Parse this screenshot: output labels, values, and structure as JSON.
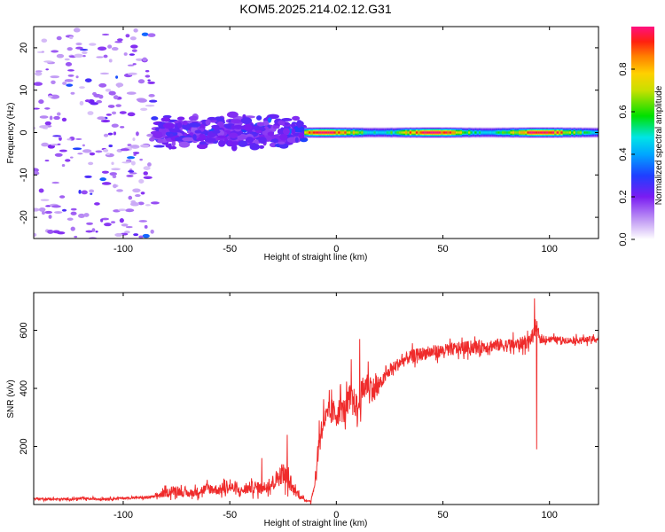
{
  "figure_title": "KOM5.2025.214.02.12.G31",
  "colors": {
    "snr_line": "#ef2b2b",
    "colormap": [
      "#ffffff",
      "#c8a6f5",
      "#9b5cf0",
      "#7a1cf2",
      "#3a10ff",
      "#1f3fff",
      "#00a6ff",
      "#00e5e5",
      "#00e000",
      "#c8e000",
      "#ffd000",
      "#ff8000",
      "#ff2010",
      "#ff1080"
    ]
  },
  "chart_data": [
    {
      "type": "heatmap",
      "title": "",
      "xlabel": "Height of straight line (km)",
      "ylabel": "Frequency (Hz)",
      "xlim": [
        -142,
        123
      ],
      "ylim": [
        -25,
        25
      ],
      "x_ticks": [
        -100,
        -50,
        0,
        50,
        100
      ],
      "x_tick_labels": [
        "-100",
        "-50",
        "0",
        "50",
        "100"
      ],
      "y_ticks": [
        -20,
        -10,
        0,
        10,
        20
      ],
      "y_tick_labels": [
        "-20",
        "-10",
        "0",
        "10",
        "20"
      ],
      "grid": false,
      "colorbar": {
        "label": "Normalized spectral amplitude",
        "range": [
          0,
          1
        ],
        "ticks": [
          0,
          0.2,
          0.4,
          0.6,
          0.8
        ],
        "tick_labels": [
          "0.0",
          "0.2",
          "0.4",
          "0.6",
          "0.8"
        ]
      },
      "regions": [
        {
          "x_range": [
            -142,
            -85
          ],
          "freq_range": [
            -25,
            25
          ],
          "amplitude_range": [
            0.05,
            0.35
          ],
          "pattern": "scattered noise"
        },
        {
          "x_range": [
            -85,
            -15
          ],
          "freq_range": [
            -5,
            5
          ],
          "amplitude_range": [
            0.15,
            0.25
          ],
          "pattern": "broadened scintillation"
        },
        {
          "x_range": [
            -15,
            123
          ],
          "freq_range": [
            -1,
            1
          ],
          "amplitude_range": [
            0.4,
            1.0
          ],
          "pattern": "narrow carrier line"
        }
      ]
    },
    {
      "type": "line",
      "title": "",
      "xlabel": "Height of straight line (km)",
      "ylabel": "SNR (v/v)",
      "xlim": [
        -142,
        123
      ],
      "ylim": [
        0,
        730
      ],
      "x_ticks": [
        -100,
        -50,
        0,
        50,
        100
      ],
      "x_tick_labels": [
        "-100",
        "-50",
        "0",
        "50",
        "100"
      ],
      "y_ticks": [
        200,
        400,
        600
      ],
      "y_tick_labels": [
        "200",
        "400",
        "600"
      ],
      "grid": false,
      "series": [
        {
          "x": [
            -142,
            -130,
            -120,
            -110,
            -100,
            -90,
            -85,
            -80,
            -75,
            -70,
            -65,
            -60,
            -55,
            -50,
            -45,
            -40,
            -35,
            -30,
            -25,
            -20,
            -15,
            -12,
            -10,
            -8,
            -6,
            -4,
            -2,
            0,
            2,
            4,
            6,
            8,
            10,
            12,
            15,
            18,
            20,
            25,
            30,
            35,
            40,
            50,
            60,
            70,
            75,
            80,
            85,
            90,
            94,
            96,
            100,
            110,
            123
          ],
          "y": [
            20,
            18,
            20,
            19,
            22,
            24,
            28,
            40,
            50,
            35,
            45,
            55,
            50,
            60,
            45,
            60,
            55,
            75,
            110,
            50,
            15,
            12,
            70,
            230,
            290,
            300,
            320,
            310,
            330,
            320,
            370,
            360,
            330,
            390,
            420,
            390,
            410,
            460,
            490,
            510,
            520,
            530,
            540,
            545,
            550,
            548,
            552,
            560,
            600,
            565,
            570,
            565,
            570
          ]
        }
      ],
      "spikes": [
        {
          "x": -35,
          "y": 160
        },
        {
          "x": -23,
          "y": 240
        },
        {
          "x": -12,
          "y": 0
        },
        {
          "x": 2,
          "y": 415
        },
        {
          "x": 7,
          "y": 500
        },
        {
          "x": 10,
          "y": 280
        },
        {
          "x": 11,
          "y": 570
        },
        {
          "x": 93,
          "y": 710
        },
        {
          "x": 94,
          "y": 190
        }
      ]
    }
  ]
}
